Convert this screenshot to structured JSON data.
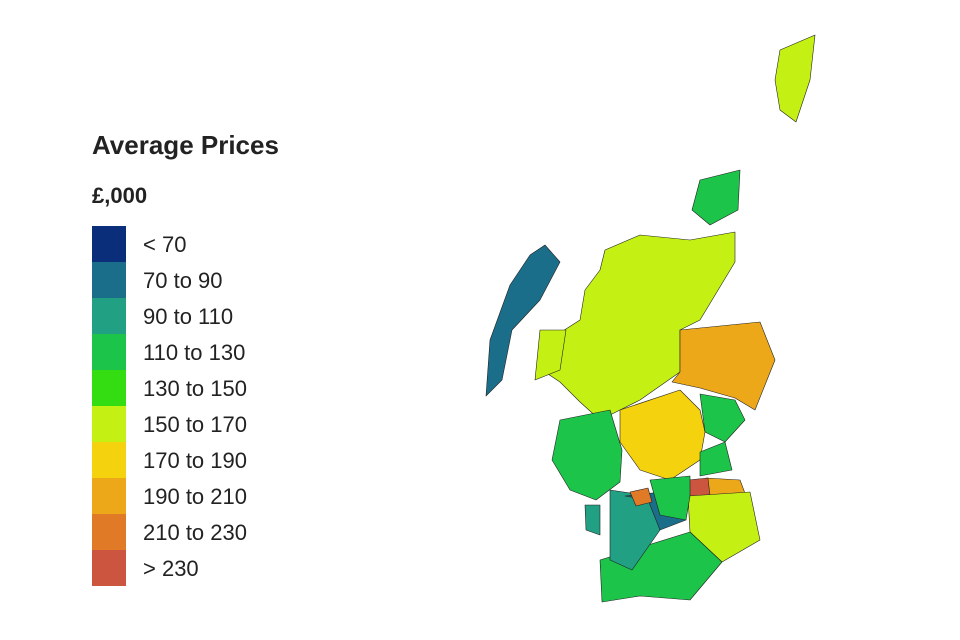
{
  "legend": {
    "title": "Average Prices",
    "unit": "£,000",
    "entries": [
      {
        "label": "< 70",
        "color": "#0b2e7a"
      },
      {
        "label": "70 to 90",
        "color": "#1a6e8a"
      },
      {
        "label": "90 to 110",
        "color": "#22a083"
      },
      {
        "label": "110 to 130",
        "color": "#1cc44a"
      },
      {
        "label": "130 to 150",
        "color": "#33dd11"
      },
      {
        "label": "150 to 170",
        "color": "#c4f014"
      },
      {
        "label": "170 to 190",
        "color": "#f5d20e"
      },
      {
        "label": "190 to 210",
        "color": "#eda81a"
      },
      {
        "label": "210 to 230",
        "color": "#e07a26"
      },
      {
        "label": "> 230",
        "color": "#cc5540"
      }
    ]
  }
}
